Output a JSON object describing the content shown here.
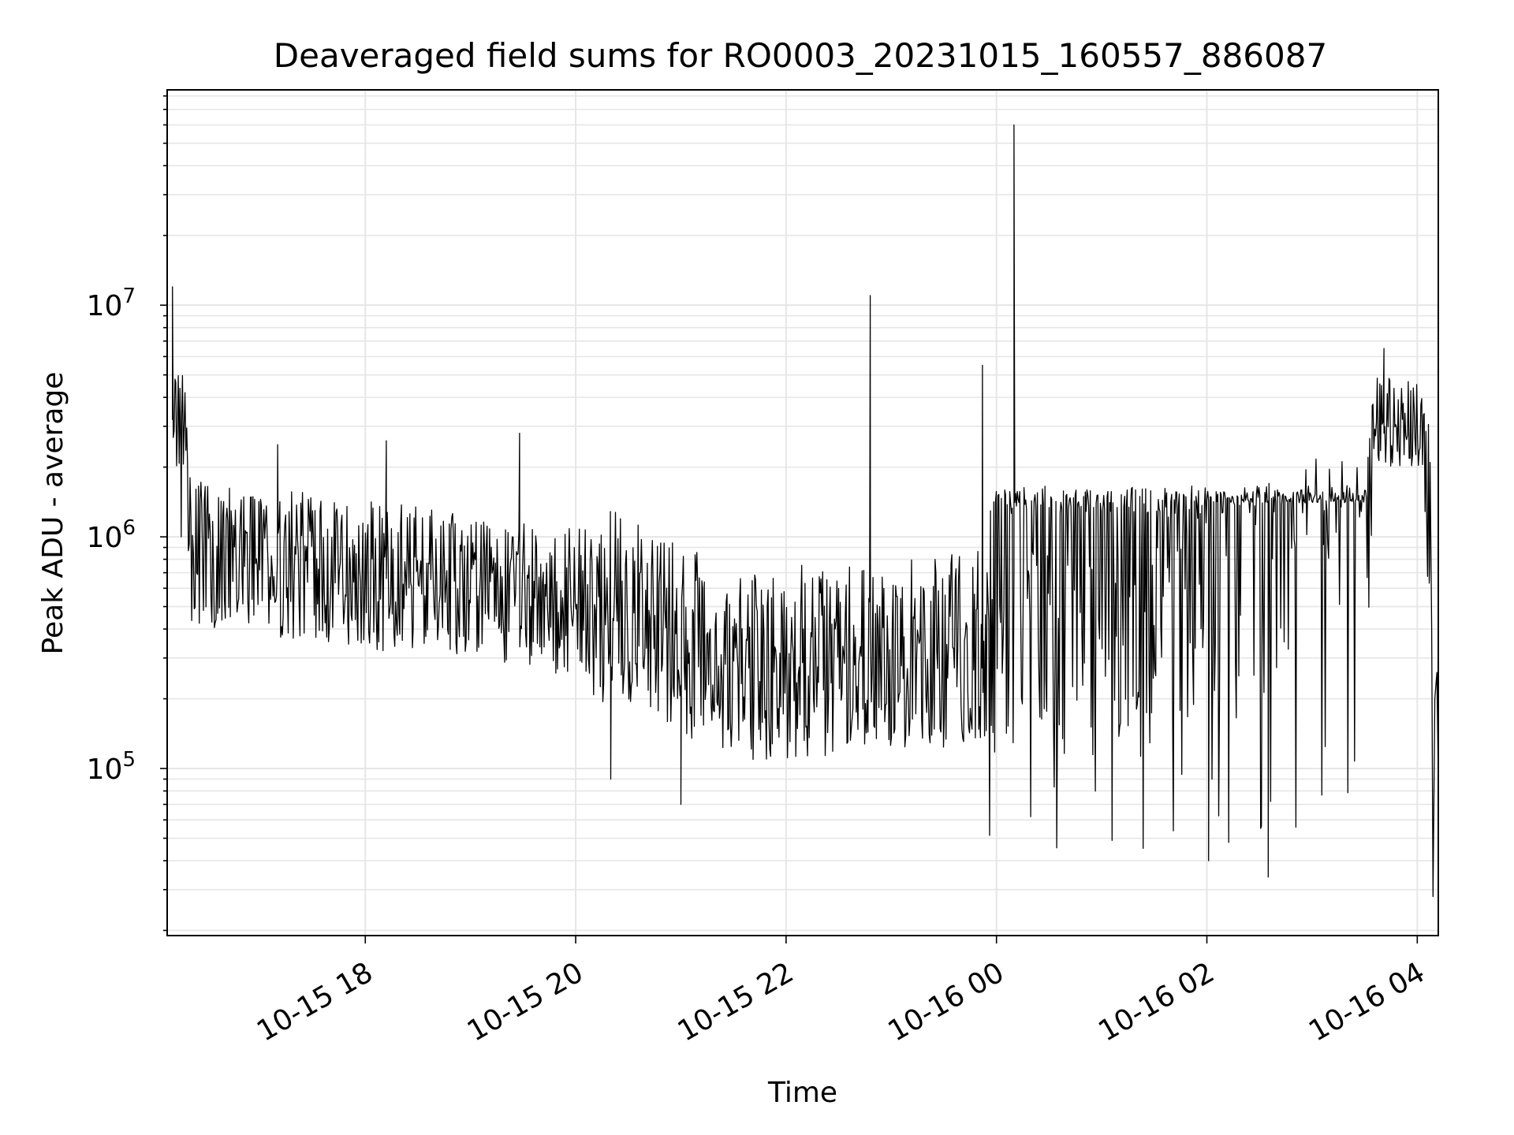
{
  "chart_data": {
    "type": "line",
    "title": "Deaveraged field sums for RO0003_20231015_160557_886087",
    "xlabel": "Time",
    "ylabel": "Peak ADU - average",
    "yscale": "log",
    "ylim": [
      19000,
      85000000
    ],
    "xlim": [
      "2023-10-15 16:07",
      "2023-10-16 04:12"
    ],
    "grid": true,
    "line_color": "#000000",
    "grid_color": "#e6e6e6",
    "x_ticks": [
      "10-15 18",
      "10-15 20",
      "10-15 22",
      "10-16 00",
      "10-16 02",
      "10-16 04"
    ],
    "y_ticks": [
      {
        "value": 100000,
        "base": "10",
        "exp": "5"
      },
      {
        "value": 1000000,
        "base": "10",
        "exp": "6"
      },
      {
        "value": 10000000,
        "base": "10",
        "exp": "7"
      }
    ],
    "series_note": "",
    "key_points": [
      {
        "t": "2023-10-15 16:10",
        "v": 12000000
      },
      {
        "t": "2023-10-15 16:15",
        "v": 1000000
      },
      {
        "t": "2023-10-15 17:10",
        "v": 2500000
      },
      {
        "t": "2023-10-15 18:12",
        "v": 2600000
      },
      {
        "t": "2023-10-15 19:28",
        "v": 2800000
      },
      {
        "t": "2023-10-15 20:20",
        "v": 90000
      },
      {
        "t": "2023-10-15 21:00",
        "v": 70000
      },
      {
        "t": "2023-10-15 22:48",
        "v": 11000000
      },
      {
        "t": "2023-10-15 23:52",
        "v": 5500000
      },
      {
        "t": "2023-10-16 00:10",
        "v": 60000000
      },
      {
        "t": "2023-10-16 02:01",
        "v": 40000
      },
      {
        "t": "2023-10-16 02:35",
        "v": 34000
      },
      {
        "t": "2023-10-16 03:41",
        "v": 6500000
      },
      {
        "t": "2023-10-16 04:09",
        "v": 28000
      }
    ]
  }
}
